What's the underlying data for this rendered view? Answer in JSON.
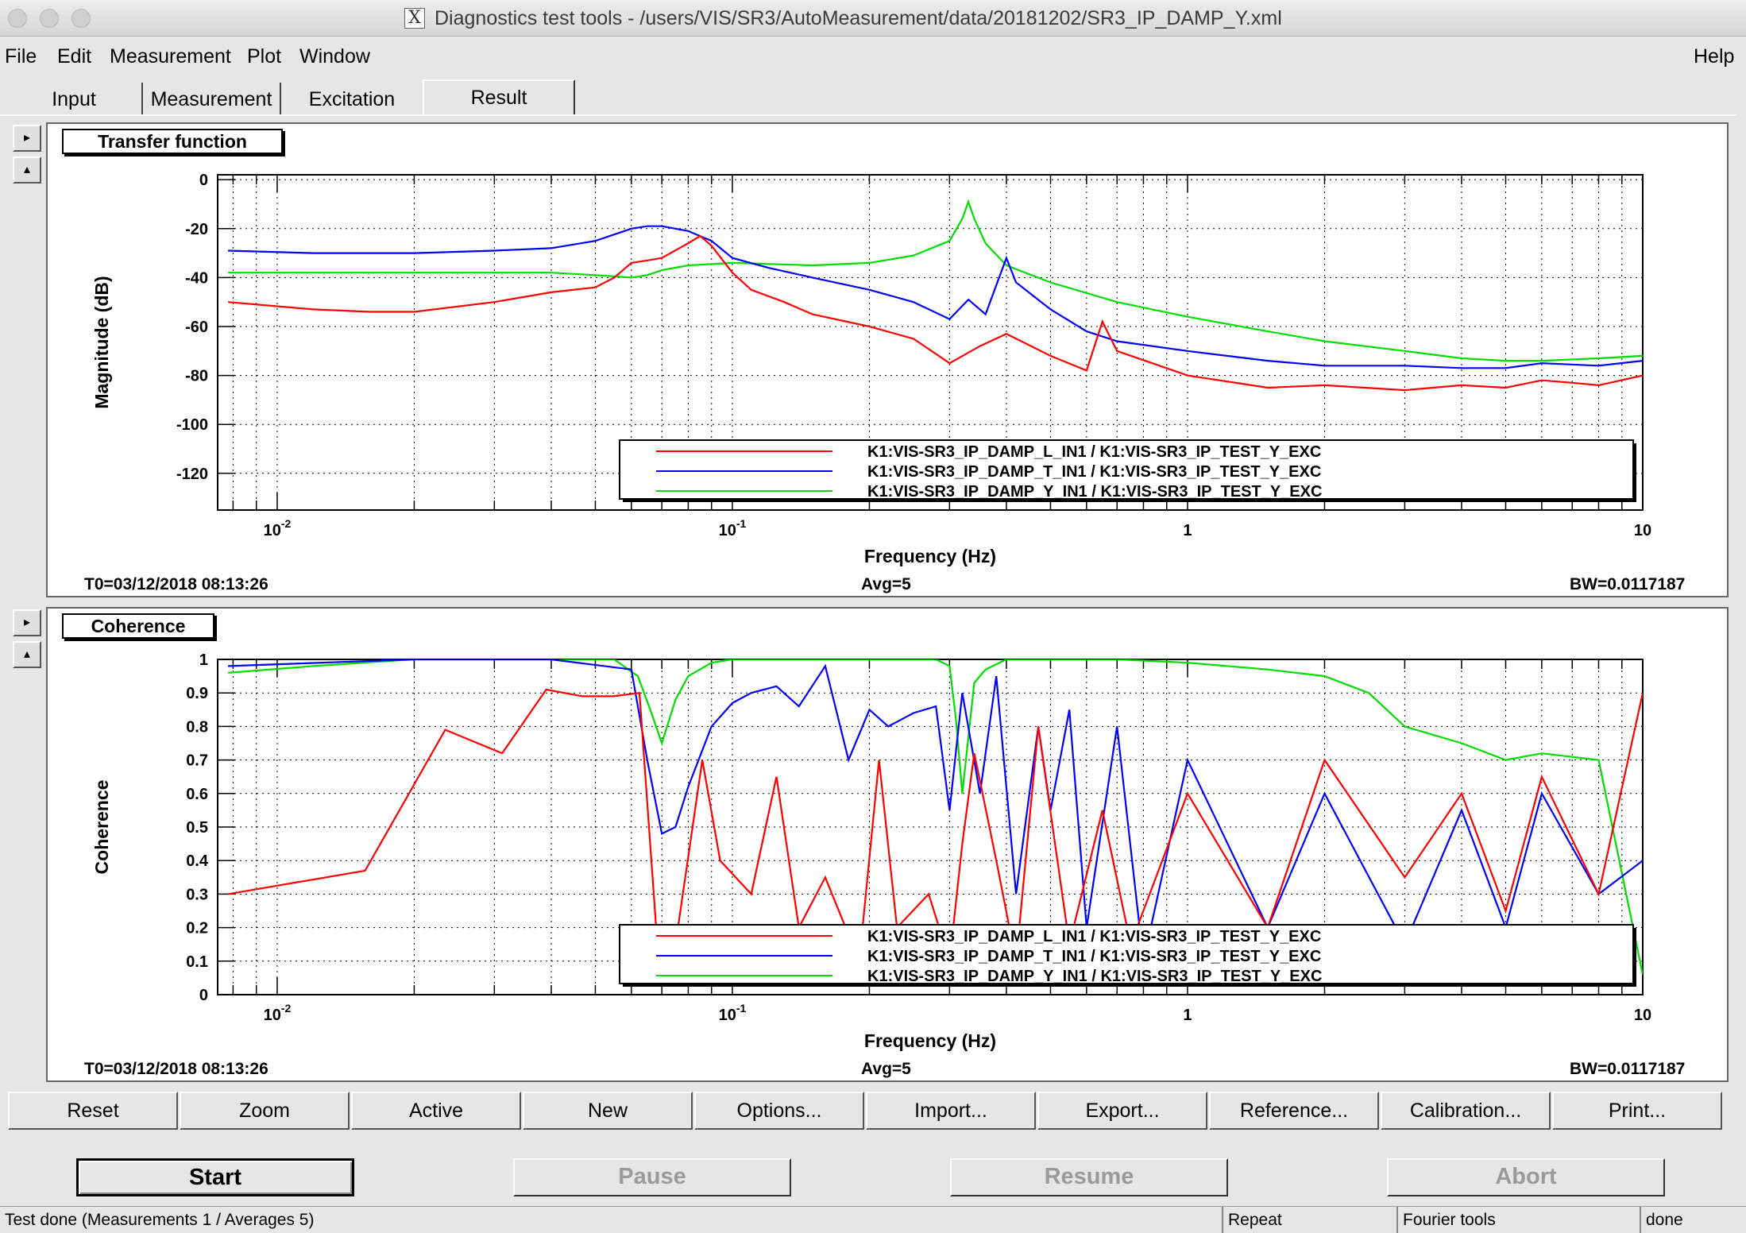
{
  "window": {
    "title": "Diagnostics test tools - /users/VIS/SR3/AutoMeasurement/data/20181202/SR3_IP_DAMP_Y.xml"
  },
  "menu": {
    "file": "File",
    "edit": "Edit",
    "measurement": "Measurement",
    "plot": "Plot",
    "window": "Window",
    "help": "Help"
  },
  "tabs": [
    {
      "label": "Input",
      "active": false
    },
    {
      "label": "Measurement",
      "active": false
    },
    {
      "label": "Excitation",
      "active": false
    },
    {
      "label": "Result",
      "active": true
    }
  ],
  "side_buttons": {
    "expand": "▸",
    "collapse": "▴"
  },
  "legend_entries": [
    "K1:VIS-SR3_IP_DAMP_L_IN1 / K1:VIS-SR3_IP_TEST_Y_EXC",
    "K1:VIS-SR3_IP_DAMP_T_IN1 / K1:VIS-SR3_IP_TEST_Y_EXC",
    "K1:VIS-SR3_IP_DAMP_Y_IN1 / K1:VIS-SR3_IP_TEST_Y_EXC"
  ],
  "series_colors": [
    "#ff0000",
    "#0000ff",
    "#00dd00"
  ],
  "chart_data": [
    {
      "type": "line",
      "panel_title": "Transfer function",
      "xlabel": "Frequency (Hz)",
      "ylabel": "Magnitude (dB)",
      "xscale": "log",
      "xlim": [
        0.0074,
        10
      ],
      "ylim": [
        -135,
        2
      ],
      "x_ticks": [
        {
          "label": "10",
          "sup": "-2"
        },
        {
          "label": "10",
          "sup": "-1"
        },
        {
          "label": "1",
          "sup": ""
        },
        {
          "label": "10",
          "sup": ""
        }
      ],
      "y_ticks": [
        "0",
        "-20",
        "-40",
        "-60",
        "-80",
        "-100",
        "-120"
      ],
      "grid": true,
      "legend_position": "bottom-right",
      "series": [
        {
          "name": "K1:VIS-SR3_IP_DAMP_L_IN1 / K1:VIS-SR3_IP_TEST_Y_EXC",
          "x": [
            0.0078,
            0.012,
            0.016,
            0.02,
            0.03,
            0.04,
            0.05,
            0.055,
            0.06,
            0.065,
            0.07,
            0.08,
            0.085,
            0.09,
            0.1,
            0.11,
            0.13,
            0.15,
            0.2,
            0.25,
            0.3,
            0.35,
            0.4,
            0.5,
            0.6,
            0.65,
            0.7,
            1,
            1.5,
            2,
            3,
            4,
            5,
            6,
            7,
            8,
            10
          ],
          "y": [
            -50,
            -53,
            -54,
            -54,
            -50,
            -46,
            -44,
            -40,
            -34,
            -33,
            -32,
            -26,
            -23,
            -27,
            -38,
            -45,
            -50,
            -55,
            -60,
            -65,
            -75,
            -68,
            -63,
            -72,
            -78,
            -58,
            -70,
            -80,
            -85,
            -84,
            -86,
            -84,
            -85,
            -82,
            -83,
            -84,
            -80
          ]
        },
        {
          "name": "K1:VIS-SR3_IP_DAMP_T_IN1 / K1:VIS-SR3_IP_TEST_Y_EXC",
          "x": [
            0.0078,
            0.012,
            0.02,
            0.03,
            0.04,
            0.05,
            0.06,
            0.065,
            0.07,
            0.08,
            0.09,
            0.1,
            0.12,
            0.15,
            0.2,
            0.25,
            0.3,
            0.33,
            0.36,
            0.4,
            0.42,
            0.5,
            0.6,
            0.7,
            1,
            1.5,
            2,
            3,
            4,
            5,
            6,
            8,
            10
          ],
          "y": [
            -29,
            -30,
            -30,
            -29,
            -28,
            -25,
            -20,
            -19,
            -19,
            -21,
            -25,
            -32,
            -36,
            -40,
            -45,
            -50,
            -57,
            -49,
            -55,
            -32,
            -42,
            -53,
            -62,
            -66,
            -70,
            -74,
            -76,
            -76,
            -77,
            -77,
            -75,
            -76,
            -74
          ]
        },
        {
          "name": "K1:VIS-SR3_IP_DAMP_Y_IN1 / K1:VIS-SR3_IP_TEST_Y_EXC",
          "x": [
            0.0078,
            0.012,
            0.02,
            0.04,
            0.05,
            0.06,
            0.065,
            0.07,
            0.08,
            0.1,
            0.15,
            0.2,
            0.25,
            0.3,
            0.32,
            0.33,
            0.34,
            0.36,
            0.4,
            0.5,
            0.7,
            1,
            1.5,
            2,
            3,
            4,
            5,
            6,
            8,
            10
          ],
          "y": [
            -38,
            -38,
            -38,
            -38,
            -39,
            -40,
            -39,
            -37,
            -35,
            -34,
            -35,
            -34,
            -31,
            -25,
            -16,
            -9,
            -16,
            -26,
            -35,
            -42,
            -50,
            -56,
            -62,
            -66,
            -70,
            -73,
            -74,
            -74,
            -73,
            -72
          ]
        }
      ],
      "annotations": {
        "t0": "T0=03/12/2018 08:13:26",
        "avg": "Avg=5",
        "bw": "BW=0.0117187"
      }
    },
    {
      "type": "line",
      "panel_title": "Coherence",
      "xlabel": "Frequency (Hz)",
      "ylabel": "Coherence",
      "xscale": "log",
      "xlim": [
        0.0074,
        10
      ],
      "ylim": [
        0,
        1
      ],
      "x_ticks": [
        {
          "label": "10",
          "sup": "-2"
        },
        {
          "label": "10",
          "sup": "-1"
        },
        {
          "label": "1",
          "sup": ""
        },
        {
          "label": "10",
          "sup": ""
        }
      ],
      "y_ticks": [
        "1",
        "0.9",
        "0.8",
        "0.7",
        "0.6",
        "0.5",
        "0.4",
        "0.3",
        "0.2",
        "0.1",
        "0"
      ],
      "grid": true,
      "legend_position": "bottom-right",
      "series": [
        {
          "name": "K1:VIS-SR3_IP_DAMP_L_IN1 / K1:VIS-SR3_IP_TEST_Y_EXC",
          "x": [
            0.0078,
            0.0156,
            0.0234,
            0.0312,
            0.039,
            0.0469,
            0.0547,
            0.0625,
            0.068,
            0.075,
            0.0859,
            0.094,
            0.11,
            0.125,
            0.14,
            0.16,
            0.19,
            0.21,
            0.23,
            0.27,
            0.3,
            0.32,
            0.34,
            0.38,
            0.42,
            0.47,
            0.55,
            0.65,
            0.75,
            1,
            1.5,
            2,
            3,
            4,
            5,
            6,
            8,
            10
          ],
          "y": [
            0.3,
            0.37,
            0.79,
            0.72,
            0.91,
            0.89,
            0.89,
            0.9,
            0.2,
            0.15,
            0.7,
            0.4,
            0.3,
            0.65,
            0.2,
            0.35,
            0.1,
            0.7,
            0.2,
            0.3,
            0.1,
            0.45,
            0.72,
            0.4,
            0.1,
            0.8,
            0.15,
            0.55,
            0.15,
            0.6,
            0.2,
            0.7,
            0.35,
            0.6,
            0.25,
            0.65,
            0.3,
            0.9
          ]
        },
        {
          "name": "K1:VIS-SR3_IP_DAMP_T_IN1 / K1:VIS-SR3_IP_TEST_Y_EXC",
          "x": [
            0.0078,
            0.02,
            0.04,
            0.06,
            0.065,
            0.07,
            0.075,
            0.08,
            0.09,
            0.1,
            0.11,
            0.125,
            0.14,
            0.16,
            0.18,
            0.2,
            0.22,
            0.25,
            0.28,
            0.3,
            0.32,
            0.35,
            0.38,
            0.42,
            0.47,
            0.5,
            0.55,
            0.6,
            0.7,
            0.8,
            1,
            1.5,
            2,
            3,
            4,
            5,
            6,
            8,
            10
          ],
          "y": [
            0.98,
            1.0,
            1.0,
            0.97,
            0.7,
            0.48,
            0.5,
            0.62,
            0.8,
            0.87,
            0.9,
            0.92,
            0.86,
            0.98,
            0.7,
            0.85,
            0.8,
            0.84,
            0.86,
            0.55,
            0.9,
            0.6,
            0.95,
            0.3,
            0.8,
            0.55,
            0.85,
            0.2,
            0.8,
            0.1,
            0.7,
            0.2,
            0.6,
            0.15,
            0.55,
            0.2,
            0.6,
            0.3,
            0.4
          ]
        },
        {
          "name": "K1:VIS-SR3_IP_DAMP_Y_IN1 / K1:VIS-SR3_IP_TEST_Y_EXC",
          "x": [
            0.0078,
            0.012,
            0.02,
            0.04,
            0.055,
            0.062,
            0.066,
            0.07,
            0.075,
            0.08,
            0.09,
            0.1,
            0.15,
            0.2,
            0.28,
            0.3,
            0.31,
            0.32,
            0.34,
            0.36,
            0.4,
            0.5,
            0.7,
            1,
            1.5,
            2,
            2.5,
            3,
            4,
            5,
            6,
            8,
            10
          ],
          "y": [
            0.96,
            0.98,
            1.0,
            1.0,
            1.0,
            0.95,
            0.85,
            0.75,
            0.88,
            0.95,
            0.99,
            1.0,
            1.0,
            1.0,
            1.0,
            0.98,
            0.82,
            0.6,
            0.93,
            0.97,
            1.0,
            1.0,
            1.0,
            0.99,
            0.97,
            0.95,
            0.9,
            0.8,
            0.75,
            0.7,
            0.72,
            0.7,
            0.06
          ]
        }
      ],
      "annotations": {
        "t0": "T0=03/12/2018 08:13:26",
        "avg": "Avg=5",
        "bw": "BW=0.0117187"
      }
    }
  ],
  "toolbar": [
    "Reset",
    "Zoom",
    "Active",
    "New",
    "Options...",
    "Import...",
    "Export...",
    "Reference...",
    "Calibration...",
    "Print..."
  ],
  "controls": {
    "start": "Start",
    "pause": "Pause",
    "resume": "Resume",
    "abort": "Abort"
  },
  "status": {
    "message": "Test done (Measurements 1 / Averages 5)",
    "mode": "Repeat",
    "tool": "Fourier tools",
    "state": "done"
  }
}
